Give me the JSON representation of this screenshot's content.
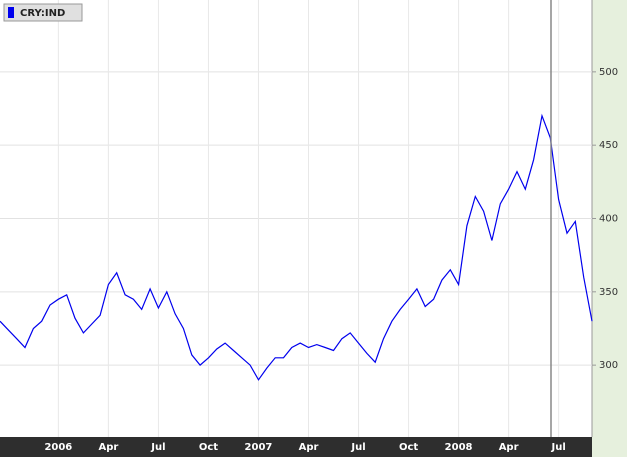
{
  "chart_data": {
    "type": "line",
    "categories": [
      null,
      null,
      null,
      null,
      null,
      null,
      null,
      "2006",
      null,
      null,
      null,
      null,
      null,
      "Apr",
      null,
      null,
      null,
      null,
      null,
      "Jul",
      null,
      null,
      null,
      null,
      null,
      "Oct",
      null,
      null,
      null,
      null,
      null,
      "2007",
      null,
      null,
      null,
      null,
      null,
      "Apr",
      null,
      null,
      null,
      null,
      null,
      "Jul",
      null,
      null,
      null,
      null,
      null,
      "Oct",
      null,
      null,
      null,
      null,
      null,
      "2008",
      null,
      null,
      null,
      null,
      null,
      "Apr",
      null,
      null,
      null,
      null,
      null,
      "Jul",
      null,
      null,
      null,
      null
    ],
    "series": [
      {
        "name": "CRY:IND",
        "color": "#0000ee",
        "values": [
          330,
          324,
          318,
          312,
          325,
          330,
          341,
          345,
          348,
          332,
          322,
          328,
          334,
          355,
          363,
          348,
          345,
          338,
          352,
          339,
          350,
          335,
          325,
          307,
          300,
          305,
          311,
          315,
          310,
          305,
          300,
          290,
          298,
          305,
          305,
          312,
          315,
          312,
          314,
          312,
          310,
          318,
          322,
          315,
          308,
          302,
          318,
          330,
          338,
          345,
          352,
          340,
          345,
          358,
          365,
          355,
          395,
          415,
          405,
          385,
          410,
          420,
          432,
          420,
          440,
          470,
          455,
          413,
          390,
          398,
          360,
          330
        ]
      }
    ],
    "ylim": [
      251,
      549
    ],
    "yticks": [
      300,
      350,
      400,
      450,
      500
    ],
    "grid": true
  }
}
